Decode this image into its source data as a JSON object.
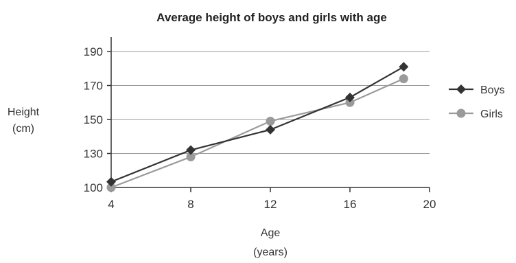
{
  "chart_data": {
    "type": "line",
    "title": "Average height of boys and girls with age",
    "xlabel_line1": "Age",
    "xlabel_line2": "(years)",
    "ylabel_line1": "Height",
    "ylabel_line2": "(cm)",
    "xlim": [
      4,
      20
    ],
    "x_ticks": [
      4,
      8,
      12,
      16,
      20
    ],
    "y_ticks": [
      100,
      130,
      150,
      170,
      190
    ],
    "grid": "horizontal",
    "legend_position": "right",
    "series": [
      {
        "name": "Boys",
        "marker": "diamond",
        "color": "#333333",
        "points": [
          [
            4,
            105
          ],
          [
            8,
            132
          ],
          [
            12,
            144
          ],
          [
            16,
            163
          ],
          [
            18.7,
            181
          ]
        ]
      },
      {
        "name": "Girls",
        "marker": "circle",
        "color": "#9a9a9a",
        "points": [
          [
            4,
            100
          ],
          [
            8,
            127
          ],
          [
            12,
            149
          ],
          [
            16,
            160
          ],
          [
            18.7,
            174
          ]
        ]
      }
    ]
  }
}
